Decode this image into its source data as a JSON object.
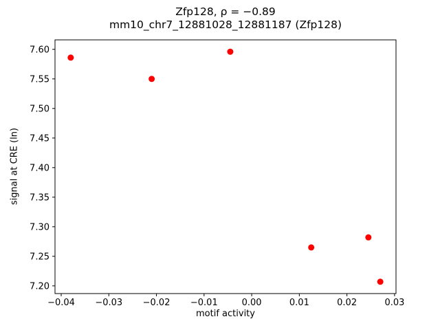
{
  "title_line1": "Zfp128, ρ = −0.89",
  "title_line2": "mm10_chr7_12881028_12881187 (Zfp128)",
  "chart_data": {
    "type": "scatter",
    "title": "Zfp128, ρ = −0.89\nmm10_chr7_12881028_12881187 (Zfp128)",
    "xlabel": "motif activity",
    "ylabel": "signal at CRE (ln)",
    "marker_color": "#ff0000",
    "grid": false,
    "legend": null,
    "xlim": [
      -0.0413,
      0.0303
    ],
    "ylim": [
      7.187,
      7.616
    ],
    "xticks": [
      -0.04,
      -0.03,
      -0.02,
      -0.01,
      0.0,
      0.01,
      0.02,
      0.03
    ],
    "yticks": [
      7.2,
      7.25,
      7.3,
      7.35,
      7.4,
      7.45,
      7.5,
      7.55,
      7.6
    ],
    "points": [
      [
        -0.038,
        7.586
      ],
      [
        -0.021,
        7.55
      ],
      [
        -0.0045,
        7.596
      ],
      [
        0.0125,
        7.265
      ],
      [
        0.0245,
        7.282
      ],
      [
        0.027,
        7.207
      ]
    ]
  }
}
